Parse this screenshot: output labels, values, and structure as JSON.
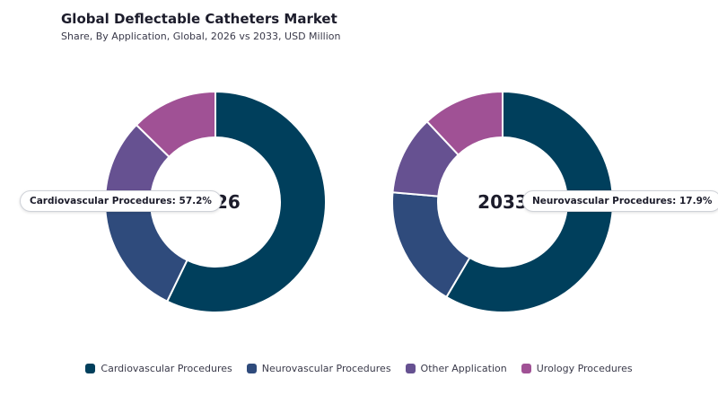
{
  "title": "Global Deflectable Catheters Market",
  "subtitle": "Share, By Application, Global, 2026 vs 2033, USD Million",
  "chart_data": {
    "type": "pie",
    "donut": true,
    "categories": [
      "Cardiovascular Procedures",
      "Neurovascular Procedures",
      "Other Application",
      "Urology Procedures"
    ],
    "colors": [
      "#003f5c",
      "#2f4b7c",
      "#665191",
      "#a05195"
    ],
    "charts": [
      {
        "label": "2026",
        "values": [
          57.2,
          17.9,
          12.2,
          12.7
        ]
      },
      {
        "label": "2033",
        "values": [
          58.5,
          17.9,
          11.6,
          12.0
        ]
      }
    ],
    "legend_position": "bottom"
  },
  "tooltips": [
    {
      "text": "Cardiovascular Procedures: 57.2%"
    },
    {
      "text": "Neurovascular Procedures: 17.9%"
    }
  ]
}
